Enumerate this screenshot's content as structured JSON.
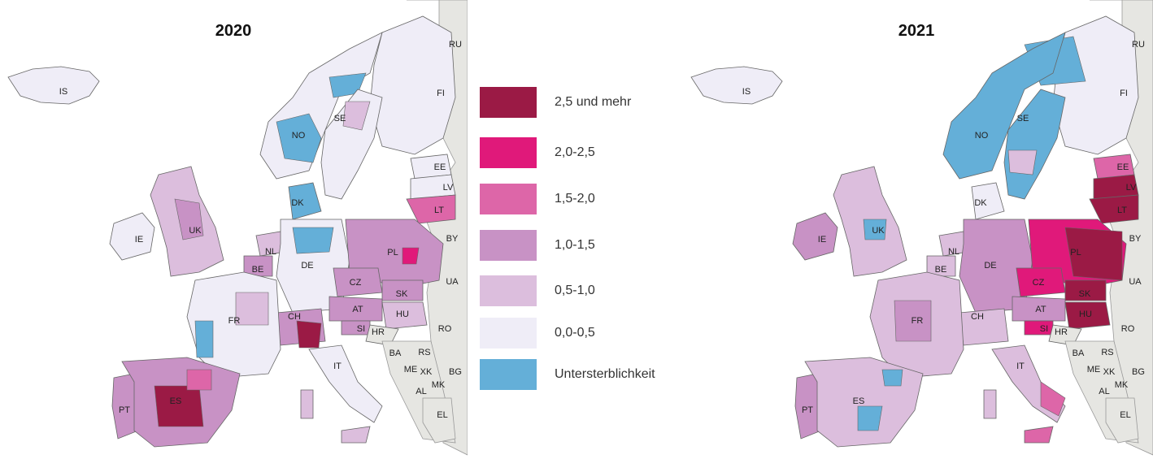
{
  "maps": [
    {
      "title": "2020",
      "labels": [
        "IS",
        "NO",
        "SE",
        "FI",
        "RU",
        "EE",
        "LV",
        "LT",
        "BY",
        "UA",
        "IE",
        "UK",
        "NL",
        "BE",
        "DE",
        "DK",
        "PL",
        "CZ",
        "SK",
        "AT",
        "HU",
        "CH",
        "FR",
        "SI",
        "HR",
        "RO",
        "BA",
        "RS",
        "ME",
        "XK",
        "BG",
        "MK",
        "AL",
        "IT",
        "EL",
        "PT",
        "ES"
      ]
    },
    {
      "title": "2021",
      "labels": [
        "IS",
        "NO",
        "SE",
        "FI",
        "RU",
        "EE",
        "LV",
        "LT",
        "BY",
        "UA",
        "IE",
        "UK",
        "NL",
        "BE",
        "DE",
        "DK",
        "PL",
        "CZ",
        "SK",
        "AT",
        "HU",
        "CH",
        "FR",
        "SI",
        "HR",
        "RO",
        "BA",
        "RS",
        "ME",
        "XK",
        "BG",
        "MK",
        "AL",
        "IT",
        "EL",
        "PT",
        "ES"
      ]
    }
  ],
  "legend": [
    {
      "label": "2,5 und mehr",
      "color": "#9b1a45"
    },
    {
      "label": "2,0-2,5",
      "color": "#e0197a"
    },
    {
      "label": "1,5-2,0",
      "color": "#dd66a8"
    },
    {
      "label": "1,0-1,5",
      "color": "#c892c5"
    },
    {
      "label": "0,5-1,0",
      "color": "#dcbedd"
    },
    {
      "label": "0,0-0,5",
      "color": "#efedf7"
    },
    {
      "label": "Untersterblichkeit",
      "color": "#64afd8"
    }
  ],
  "colors": {
    "non_data_land": "#e6e6e2",
    "border": "#666666"
  }
}
